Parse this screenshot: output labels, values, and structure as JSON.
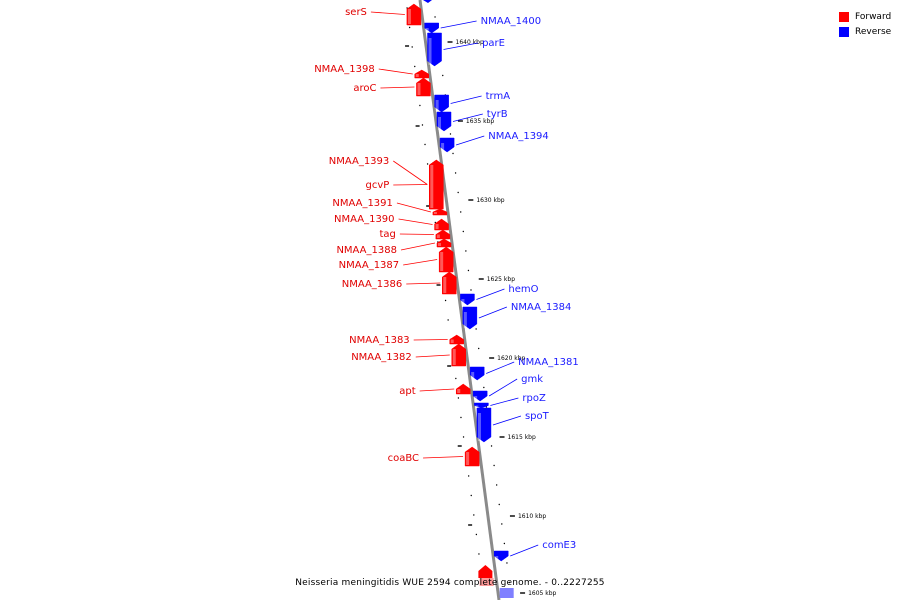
{
  "legend": [
    {
      "label": "Forward",
      "color": "#ff0000"
    },
    {
      "label": "Reverse",
      "color": "#0000ff"
    }
  ],
  "footer": "Neisseria meningitidis WUE 2594 complete genome. - 0..2227255",
  "colors": {
    "forward": "#ff0000",
    "reverse": "#0000ff",
    "backbone": "#888888"
  },
  "ticks": [
    "1640 kbp",
    "1635 kbp",
    "1630 kbp",
    "1625 kbp",
    "1620 kbp",
    "1615 kbp",
    "1610 kbp",
    "1605 kbp"
  ],
  "genes_forward": [
    "serS",
    "NMAA_1398",
    "aroC",
    "NMAA_1393",
    "gcvP",
    "NMAA_1391",
    "NMAA_1390",
    "tag",
    "NMAA_1388",
    "NMAA_1387",
    "NMAA_1386",
    "NMAA_1383",
    "NMAA_1382",
    "apt",
    "coaBC"
  ],
  "genes_reverse": [
    "NMAA_1400",
    "parE",
    "trmA",
    "tyrB",
    "NMAA_1394",
    "hemO",
    "NMAA_1384",
    "NMAA_1381",
    "gmk",
    "rpoZ",
    "spoT",
    "comE3"
  ]
}
